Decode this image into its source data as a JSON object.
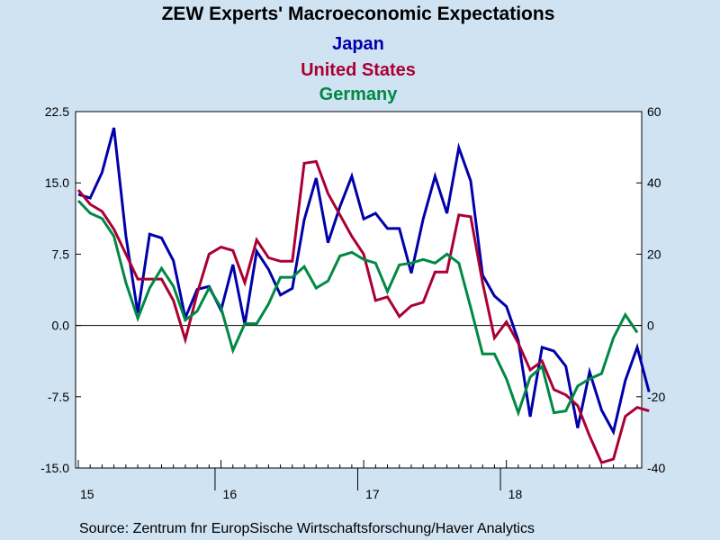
{
  "chart_data": {
    "type": "line",
    "title": "ZEW Experts' Macroeconomic Expectations",
    "source": "Source:  Zentrum fnr EuropSische Wirtschaftsforschung/Haver Analytics",
    "x_tick_labels": [
      "15",
      "16",
      "17",
      "18"
    ],
    "x_start": 2015.0,
    "x_step_months": 1,
    "left_axis": {
      "ylim": [
        -15.0,
        22.5
      ],
      "ticks": [
        22.5,
        15.0,
        7.5,
        0.0,
        -7.5,
        -15.0
      ],
      "tick_labels": [
        "22.5",
        "15.0",
        "7.5",
        "0.0",
        "-7.5",
        "-15.0"
      ]
    },
    "right_axis": {
      "ylim": [
        -40,
        60
      ],
      "ticks": [
        60,
        40,
        20,
        0,
        -20,
        -40
      ],
      "tick_labels": [
        "60",
        "40",
        "20",
        "0",
        "-20",
        "-40"
      ]
    },
    "grid": false,
    "zero_line": true,
    "series": [
      {
        "name": "Japan",
        "color": "#0000aa",
        "axis": "left",
        "values": [
          13.8,
          13.4,
          16.1,
          20.8,
          9.4,
          1.3,
          9.6,
          9.2,
          6.8,
          0.8,
          3.8,
          4.1,
          1.6,
          6.4,
          0.1,
          7.8,
          5.9,
          3.2,
          3.9,
          11.1,
          15.5,
          8.7,
          12.5,
          15.7,
          11.2,
          11.8,
          10.2,
          10.2,
          5.5,
          11.2,
          15.7,
          11.8,
          18.7,
          15.2,
          5.3,
          3.1,
          2.0,
          -1.6,
          -9.6,
          -2.3,
          -2.7,
          -4.3,
          -10.8,
          -4.9,
          -8.9,
          -11.2,
          -5.8,
          -2.3,
          -7.0
        ]
      },
      {
        "name": "United States",
        "color": "#aa0033",
        "axis": "right",
        "values": [
          38,
          34,
          32,
          27,
          20,
          13,
          13,
          13,
          7,
          -4,
          9,
          20,
          22,
          21,
          12,
          24,
          19,
          18,
          18,
          45.5,
          46,
          37,
          31,
          25,
          20,
          7,
          8,
          2.5,
          5.5,
          6.5,
          15,
          15,
          31,
          30.5,
          12,
          -3.5,
          1,
          -5,
          -12.5,
          -10,
          -18,
          -19.5,
          -22.5,
          -31,
          -38.5,
          -37.5,
          -25.5,
          -23,
          -24
        ]
      },
      {
        "name": "Germany",
        "color": "#008844",
        "axis": "right",
        "values": [
          35,
          31.5,
          30,
          25,
          12,
          2,
          10.5,
          16,
          11,
          1.5,
          4,
          10.5,
          5,
          -7,
          0.5,
          0.5,
          6,
          13.5,
          13.5,
          16.5,
          10.5,
          12.5,
          19.5,
          20.5,
          18.5,
          17.5,
          9.5,
          17,
          17.5,
          18.5,
          17.5,
          20,
          17.5,
          5,
          -8,
          -8,
          -15,
          -24.5,
          -14.5,
          -11.5,
          -24.5,
          -24,
          -17,
          -15,
          -13.5,
          -3.5,
          3,
          -2
        ]
      }
    ]
  }
}
